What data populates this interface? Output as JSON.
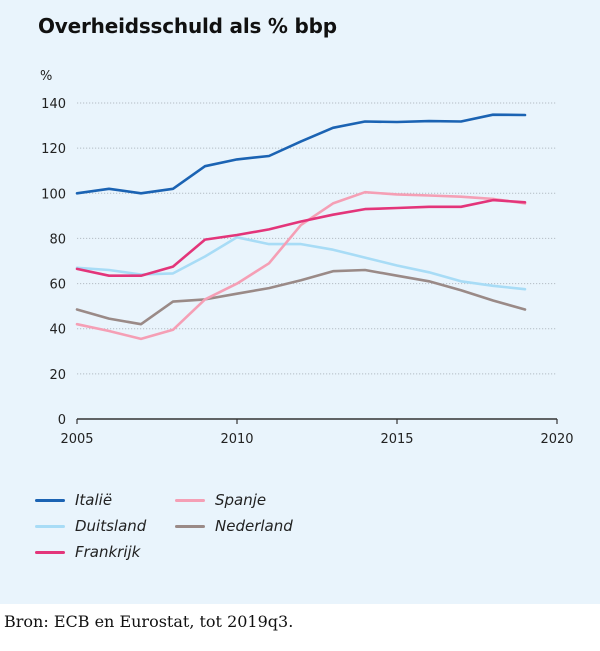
{
  "chart_data": {
    "type": "line",
    "title": "Overheidsschuld als % bbp",
    "ylabel": "%",
    "xlabel": "",
    "xlim": [
      2005,
      2020
    ],
    "ylim": [
      0,
      140
    ],
    "xticks": [
      "2005",
      "2010",
      "2015",
      "2020"
    ],
    "yticks": [
      "0",
      "20",
      "40",
      "60",
      "80",
      "100",
      "120",
      "140"
    ],
    "grid": "horizontal",
    "legend_position": "bottom",
    "x": [
      2005,
      2006,
      2007,
      2008,
      2009,
      2010,
      2011,
      2012,
      2013,
      2014,
      2015,
      2016,
      2017,
      2018,
      2019
    ],
    "series": [
      {
        "name": "Italië",
        "color": "#1b63b3",
        "values": [
          100,
          102,
          100,
          102,
          112,
          115,
          116.5,
          123,
          129,
          131.8,
          131.6,
          132,
          131.8,
          134.8,
          134.7
        ]
      },
      {
        "name": "Duitsland",
        "color": "#a8dcf6",
        "values": [
          67,
          66,
          64,
          64.5,
          72,
          80.5,
          77.5,
          77.5,
          75,
          71.5,
          68,
          65,
          61,
          59,
          57.5
        ]
      },
      {
        "name": "Frankrijk",
        "color": "#e3357a",
        "values": [
          66.5,
          63.5,
          63.5,
          67.5,
          79.5,
          81.5,
          84,
          87.5,
          90.5,
          93,
          93.5,
          94,
          94,
          97,
          96
        ]
      },
      {
        "name": "Spanje",
        "color": "#f59fb5",
        "values": [
          42,
          39,
          35.5,
          39.5,
          53,
          60,
          69,
          86,
          95.5,
          100.5,
          99.5,
          99,
          98.5,
          97.5,
          95.5
        ]
      },
      {
        "name": "Nederland",
        "color": "#9a8a87",
        "values": [
          48.5,
          44.5,
          42,
          52,
          53,
          55.5,
          58,
          61.5,
          65.5,
          66,
          63.5,
          61,
          57,
          52.5,
          48.5
        ]
      }
    ]
  },
  "source": "Bron: ECB en Eurostat, tot 2019q3."
}
